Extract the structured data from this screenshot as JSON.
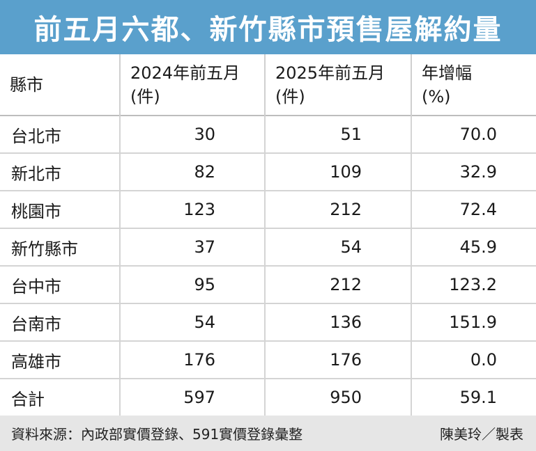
{
  "chart_data": {
    "type": "table",
    "title": "前五月六都、新竹縣市預售屋解約量",
    "columns": [
      "縣市",
      "2024年前五月",
      "(件)",
      "2025年前五月",
      "(件)",
      "年增幅",
      "(%)"
    ],
    "headers": [
      {
        "line1": "縣市",
        "line2": ""
      },
      {
        "line1": "2024年前五月",
        "line2": "(件)"
      },
      {
        "line1": "2025年前五月",
        "line2": "(件)"
      },
      {
        "line1": "年增幅",
        "line2": "(%)"
      }
    ],
    "rows": [
      {
        "city": "台北市",
        "y2024": "30",
        "y2025": "51",
        "growth": "70.0"
      },
      {
        "city": "新北市",
        "y2024": "82",
        "y2025": "109",
        "growth": "32.9"
      },
      {
        "city": "桃園市",
        "y2024": "123",
        "y2025": "212",
        "growth": "72.4"
      },
      {
        "city": "新竹縣市",
        "y2024": "37",
        "y2025": "54",
        "growth": "45.9"
      },
      {
        "city": "台中市",
        "y2024": "95",
        "y2025": "212",
        "growth": "123.2"
      },
      {
        "city": "台南市",
        "y2024": "54",
        "y2025": "136",
        "growth": "151.9"
      },
      {
        "city": "高雄市",
        "y2024": "176",
        "y2025": "176",
        "growth": "0.0"
      },
      {
        "city": "合計",
        "y2024": "597",
        "y2025": "950",
        "growth": "59.1"
      }
    ]
  },
  "footer": {
    "source": "資料來源：內政部實價登錄、591實價登錄彙整",
    "credit": "陳美玲／製表"
  },
  "colors": {
    "title_bar": "#5aa0cc",
    "title_text": "#ffffff",
    "footer_bg": "#e6e6e6"
  }
}
